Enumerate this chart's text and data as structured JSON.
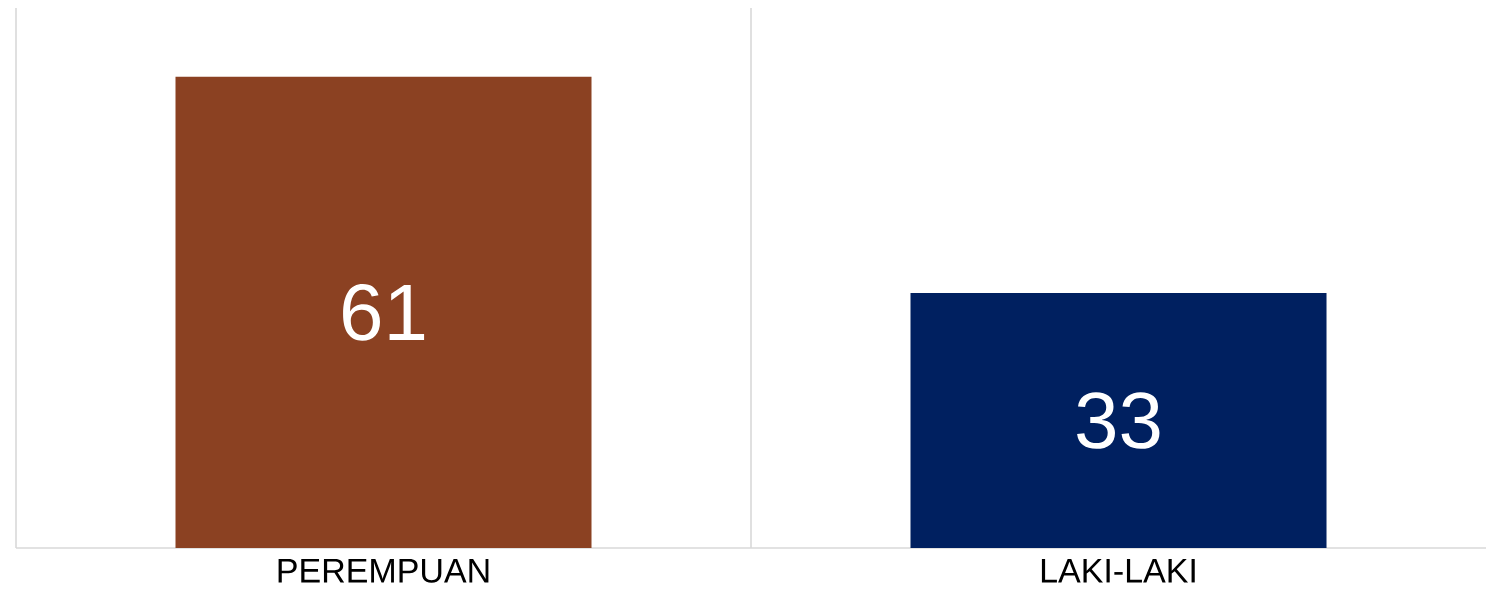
{
  "chart_data": {
    "type": "bar",
    "categories": [
      "PEREMPUAN",
      "LAKI-LAKI"
    ],
    "values": [
      61,
      33
    ],
    "colors": [
      "#8b4122",
      "#002060"
    ],
    "data_labels": true,
    "grid": "x"
  }
}
